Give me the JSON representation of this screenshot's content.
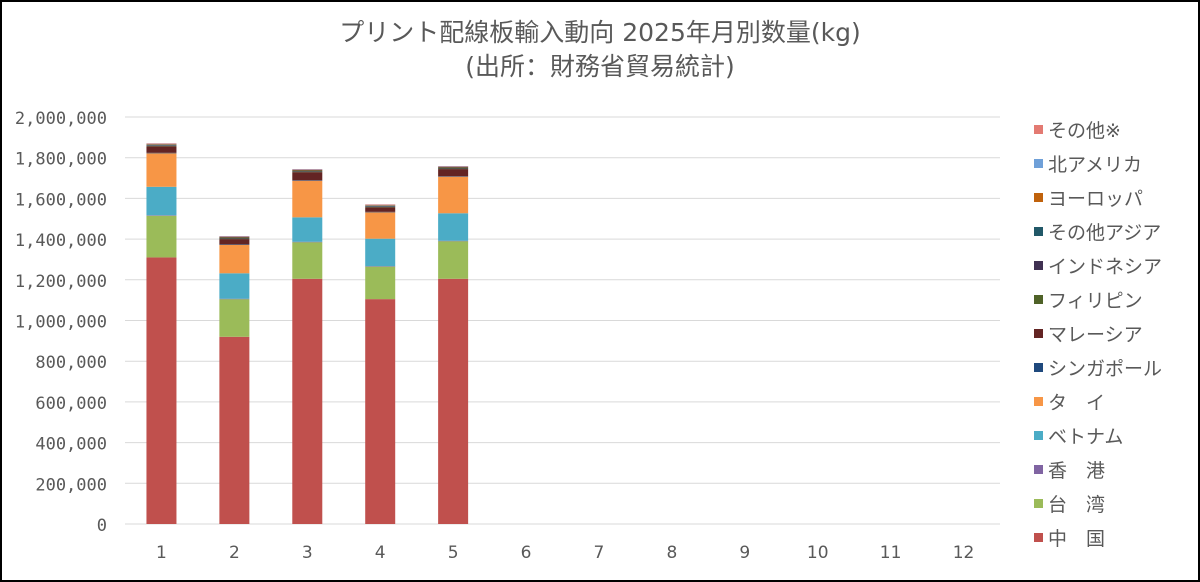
{
  "chart_data": {
    "type": "bar",
    "stacked": true,
    "title": "プリント配線板輸入動向 2025年月別数量(kg)",
    "subtitle": "(出所：財務省貿易統計)",
    "xlabel": "",
    "ylabel": "",
    "ylim": [
      0,
      2000000
    ],
    "yticks": [
      "0",
      "200,000",
      "400,000",
      "600,000",
      "800,000",
      "1,000,000",
      "1,200,000",
      "1,400,000",
      "1,600,000",
      "1,800,000",
      "2,000,000"
    ],
    "categories": [
      "1",
      "2",
      "3",
      "4",
      "5",
      "6",
      "7",
      "8",
      "9",
      "10",
      "11",
      "12"
    ],
    "grid": true,
    "legend_position": "right",
    "series": [
      {
        "name": "中　国",
        "color": "#C0504D",
        "values": [
          1310000,
          920000,
          1205000,
          1105000,
          1205000,
          null,
          null,
          null,
          null,
          null,
          null,
          null
        ]
      },
      {
        "name": "台　湾",
        "color": "#9BBB59",
        "values": [
          205000,
          185000,
          180000,
          160000,
          185000,
          null,
          null,
          null,
          null,
          null,
          null,
          null
        ]
      },
      {
        "name": "香　港",
        "color": "#8064A2",
        "values": [
          2000,
          2000,
          2000,
          2000,
          2000,
          null,
          null,
          null,
          null,
          null,
          null,
          null
        ]
      },
      {
        "name": "ベトナム",
        "color": "#4BACC6",
        "values": [
          140000,
          125000,
          120000,
          135000,
          135000,
          null,
          null,
          null,
          null,
          null,
          null,
          null
        ]
      },
      {
        "name": "タ　イ",
        "color": "#F79646",
        "values": [
          165000,
          140000,
          180000,
          130000,
          180000,
          null,
          null,
          null,
          null,
          null,
          null,
          null
        ]
      },
      {
        "name": "シンガポール",
        "color": "#1F497D",
        "values": [
          2000,
          2000,
          2000,
          2000,
          2000,
          null,
          null,
          null,
          null,
          null,
          null,
          null
        ]
      },
      {
        "name": "マレーシア",
        "color": "#632423",
        "values": [
          32000,
          26000,
          40000,
          22000,
          35000,
          null,
          null,
          null,
          null,
          null,
          null,
          null
        ]
      },
      {
        "name": "フィリピン",
        "color": "#4F6228",
        "values": [
          3000,
          3000,
          3000,
          3000,
          3000,
          null,
          null,
          null,
          null,
          null,
          null,
          null
        ]
      },
      {
        "name": "インドネシア",
        "color": "#403152",
        "values": [
          2000,
          2000,
          2000,
          2000,
          2000,
          null,
          null,
          null,
          null,
          null,
          null,
          null
        ]
      },
      {
        "name": "その他アジア",
        "color": "#215868",
        "values": [
          3000,
          3000,
          3000,
          3000,
          3000,
          null,
          null,
          null,
          null,
          null,
          null,
          null
        ]
      },
      {
        "name": "ヨーロッパ",
        "color": "#C0620C",
        "values": [
          3000,
          3000,
          3000,
          3000,
          3000,
          null,
          null,
          null,
          null,
          null,
          null,
          null
        ]
      },
      {
        "name": "北アメリカ",
        "color": "#6FA0D8",
        "values": [
          2000,
          2000,
          2000,
          2000,
          2000,
          null,
          null,
          null,
          null,
          null,
          null,
          null
        ]
      },
      {
        "name": "その他※",
        "color": "#E37A72",
        "values": [
          2000,
          2000,
          2000,
          2000,
          2000,
          null,
          null,
          null,
          null,
          null,
          null,
          null
        ]
      }
    ]
  }
}
